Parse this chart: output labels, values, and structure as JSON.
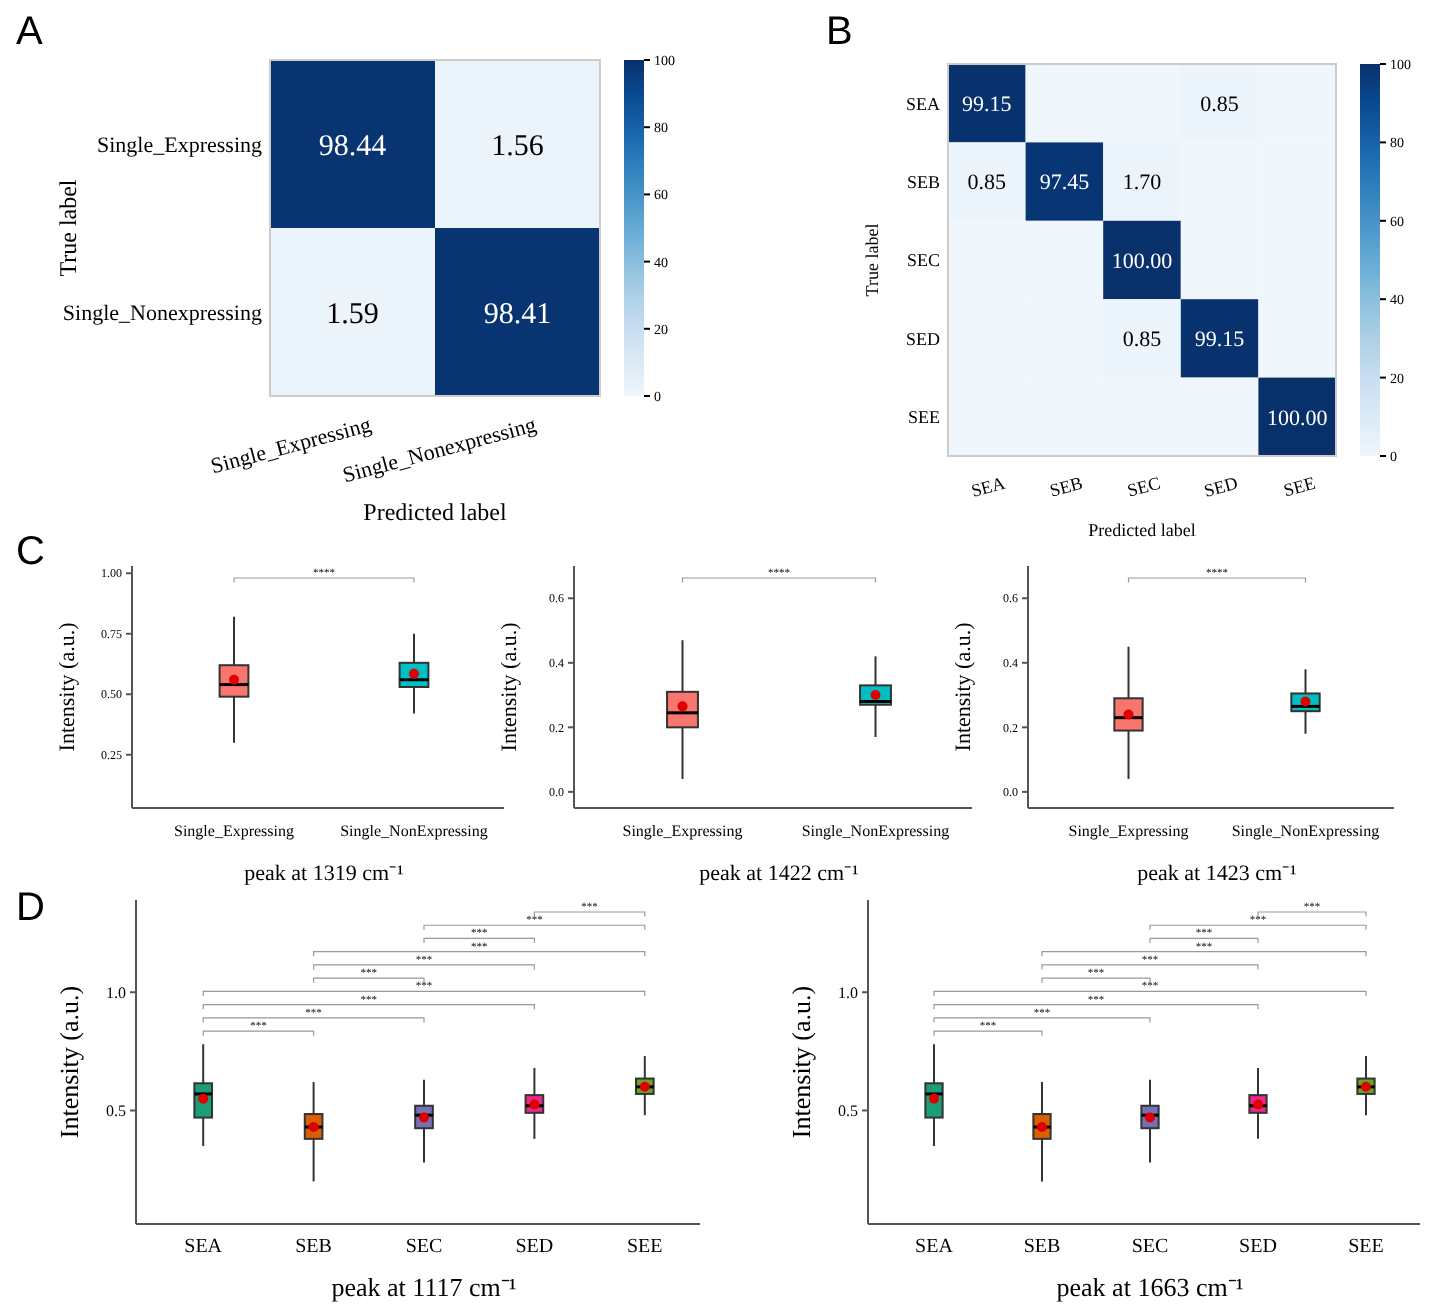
{
  "chart_data": [
    {
      "type": "heatmap",
      "xlabel": "Predicted label",
      "ylabel": "True label",
      "annotations": [
        "A"
      ],
      "categories": [
        "Single_Expressing",
        "Single_Nonexpressing"
      ],
      "y_categories": [
        "Single_Expressing",
        "Single_Nonexpressing"
      ],
      "cells": [
        [
          98.44,
          1.56
        ],
        [
          1.59,
          98.41
        ]
      ],
      "data_labels": true,
      "clim": [
        0,
        100
      ],
      "cticks": [
        0,
        20,
        40,
        60,
        80,
        100
      ]
    },
    {
      "type": "heatmap",
      "xlabel": "Predicted label",
      "ylabel": "True label",
      "annotations": [
        "B"
      ],
      "categories": [
        "SEA",
        "SEB",
        "SEC",
        "SED",
        "SEE"
      ],
      "y_categories": [
        "SEA",
        "SEB",
        "SEC",
        "SED",
        "SEE"
      ],
      "cells": [
        [
          99.15,
          0,
          0,
          0.85,
          0
        ],
        [
          0.85,
          97.45,
          1.7,
          0,
          0
        ],
        [
          0,
          0,
          100,
          0,
          0
        ],
        [
          0,
          0,
          0.85,
          99.15,
          0
        ],
        [
          0,
          0,
          0,
          0,
          100
        ]
      ],
      "cell_labels": [
        [
          "99.15",
          null,
          null,
          "0.85",
          null
        ],
        [
          "0.85",
          "97.45",
          "1.70",
          null,
          null
        ],
        [
          null,
          null,
          "100.00",
          null,
          null
        ],
        [
          null,
          null,
          "0.85",
          "99.15",
          null
        ],
        [
          null,
          null,
          null,
          null,
          "100.00"
        ]
      ],
      "clim": [
        0,
        100
      ],
      "cticks": [
        0,
        20,
        40,
        60,
        80,
        100
      ]
    },
    {
      "type": "box",
      "xlabel": "peak at 1319 cm⁻¹",
      "ylabel": "Intensity (a.u.)",
      "annotations": [
        "C",
        "****"
      ],
      "categories": [
        "Single_Expressing",
        "Single_NonExpressing"
      ],
      "colors": [
        "#f8766d",
        "#00bfc4"
      ],
      "ylim": [
        0.03,
        1.03
      ],
      "yticks": [
        0.25,
        {
          "value": 0.5,
          "label": "0.50"
        },
        0.75,
        {
          "value": 1,
          "label": "1.00"
        }
      ],
      "boxes": [
        {
          "low": 0.3,
          "q1": 0.49,
          "median": 0.54,
          "q3": 0.62,
          "high": 0.82,
          "mean": 0.56
        },
        {
          "low": 0.42,
          "q1": 0.53,
          "median": 0.56,
          "q3": 0.63,
          "high": 0.75,
          "mean": 0.585
        }
      ]
    },
    {
      "type": "box",
      "xlabel": "peak at 1422 cm⁻¹",
      "ylabel": "Intensity (a.u.)",
      "annotations": [
        "****"
      ],
      "categories": [
        "Single_Expressing",
        "Single_NonExpressing"
      ],
      "colors": [
        "#f8766d",
        "#00bfc4"
      ],
      "ylim": [
        -0.05,
        0.7
      ],
      "yticks": [
        {
          "value": 0,
          "label": "0.0"
        },
        0.2,
        0.4,
        0.6
      ],
      "boxes": [
        {
          "low": 0.04,
          "q1": 0.2,
          "median": 0.245,
          "q3": 0.31,
          "high": 0.47,
          "mean": 0.265
        },
        {
          "low": 0.17,
          "q1": 0.27,
          "median": 0.28,
          "q3": 0.33,
          "high": 0.42,
          "mean": 0.3
        }
      ]
    },
    {
      "type": "box",
      "xlabel": "peak at 1423 cm⁻¹",
      "ylabel": "Intensity (a.u.)",
      "annotations": [
        "****"
      ],
      "categories": [
        "Single_Expressing",
        "Single_NonExpressing"
      ],
      "colors": [
        "#f8766d",
        "#00bfc4"
      ],
      "ylim": [
        -0.05,
        0.7
      ],
      "yticks": [
        {
          "value": 0,
          "label": "0.0"
        },
        0.2,
        0.4,
        0.6
      ],
      "boxes": [
        {
          "low": 0.04,
          "q1": 0.19,
          "median": 0.23,
          "q3": 0.29,
          "high": 0.45,
          "mean": 0.24
        },
        {
          "low": 0.18,
          "q1": 0.25,
          "median": 0.265,
          "q3": 0.305,
          "high": 0.38,
          "mean": 0.28
        }
      ]
    },
    {
      "type": "box",
      "xlabel": "peak at 1117 cm⁻¹",
      "ylabel": "Intensity (a.u.)",
      "annotations": [
        "D",
        "***",
        "***",
        "***",
        "***",
        "***",
        "***",
        "***",
        "***",
        "***",
        "***"
      ],
      "categories": [
        "SEA",
        "SEB",
        "SEC",
        "SED",
        "SEE"
      ],
      "colors": [
        "#1b9e77",
        "#d95f02",
        "#7570b3",
        "#e7298a",
        "#66a61e"
      ],
      "ylim": [
        0.02,
        1.39
      ],
      "yticks": [
        0.5,
        {
          "value": 1,
          "label": "1.0"
        }
      ],
      "boxes": [
        {
          "low": 0.35,
          "q1": 0.47,
          "median": 0.57,
          "q3": 0.615,
          "high": 0.78,
          "mean": 0.55
        },
        {
          "low": 0.2,
          "q1": 0.38,
          "median": 0.43,
          "q3": 0.485,
          "high": 0.62,
          "mean": 0.43
        },
        {
          "low": 0.28,
          "q1": 0.425,
          "median": 0.48,
          "q3": 0.52,
          "high": 0.63,
          "mean": 0.47
        },
        {
          "low": 0.38,
          "q1": 0.49,
          "median": 0.52,
          "q3": 0.565,
          "high": 0.68,
          "mean": 0.525
        },
        {
          "low": 0.48,
          "q1": 0.57,
          "median": 0.6,
          "q3": 0.635,
          "high": 0.73,
          "mean": 0.6
        }
      ]
    },
    {
      "type": "box",
      "xlabel": "peak at 1663 cm⁻¹",
      "ylabel": "Intensity (a.u.)",
      "annotations": [
        "***",
        "***",
        "***",
        "***",
        "***",
        "***",
        "***",
        "***",
        "***",
        "***"
      ],
      "categories": [
        "SEA",
        "SEB",
        "SEC",
        "SED",
        "SEE"
      ],
      "colors": [
        "#1b9e77",
        "#d95f02",
        "#7570b3",
        "#e7298a",
        "#66a61e"
      ],
      "ylim": [
        0.02,
        1.39
      ],
      "yticks": [
        0.5,
        {
          "value": 1,
          "label": "1.0"
        }
      ],
      "boxes": [
        {
          "low": 0.35,
          "q1": 0.47,
          "median": 0.57,
          "q3": 0.615,
          "high": 0.78,
          "mean": 0.55
        },
        {
          "low": 0.2,
          "q1": 0.38,
          "median": 0.43,
          "q3": 0.485,
          "high": 0.62,
          "mean": 0.43
        },
        {
          "low": 0.28,
          "q1": 0.425,
          "median": 0.48,
          "q3": 0.52,
          "high": 0.63,
          "mean": 0.47
        },
        {
          "low": 0.38,
          "q1": 0.49,
          "median": 0.52,
          "q3": 0.565,
          "high": 0.68,
          "mean": 0.525
        },
        {
          "low": 0.48,
          "q1": 0.57,
          "median": 0.6,
          "q3": 0.635,
          "high": 0.73,
          "mean": 0.6
        }
      ]
    }
  ]
}
